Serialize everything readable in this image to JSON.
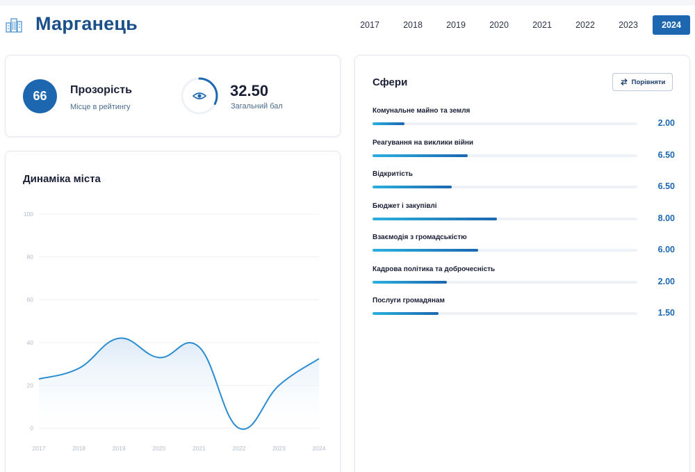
{
  "header": {
    "city": "Марганець",
    "icon": "city-buildings-icon",
    "years": [
      "2017",
      "2018",
      "2019",
      "2020",
      "2021",
      "2022",
      "2023",
      "2024"
    ],
    "active_year": "2024"
  },
  "rating": {
    "rank": "66",
    "title": "Прозорість",
    "subtitle": "Місце в рейтингу",
    "score": "32.50",
    "score_label": "Загальний бал",
    "score_fraction": 0.325,
    "icon": "eye-icon"
  },
  "dynamics": {
    "title": "Динаміка міста"
  },
  "spheres": {
    "title": "Сфери",
    "compare_label": "Порівняти",
    "compare_icon": "swap-arrows-icon",
    "items": [
      {
        "label": "Комунальне майно та земля",
        "value": "2.00",
        "fraction": 0.12
      },
      {
        "label": "Реагування на виклики війни",
        "value": "6.50",
        "fraction": 0.36
      },
      {
        "label": "Відкритість",
        "value": "6.50",
        "fraction": 0.3
      },
      {
        "label": "Бюджет і закупівлі",
        "value": "8.00",
        "fraction": 0.47
      },
      {
        "label": "Взаємодія з громадськістю",
        "value": "6.00",
        "fraction": 0.4
      },
      {
        "label": "Кадрова політика та доброчесність",
        "value": "2.00",
        "fraction": 0.28
      },
      {
        "label": "Послуги громадянам",
        "value": "1.50",
        "fraction": 0.25
      }
    ]
  },
  "chart_data": {
    "type": "area",
    "x": [
      "2017",
      "2018",
      "2019",
      "2020",
      "2021",
      "2022",
      "2023",
      "2024"
    ],
    "series": [
      {
        "values": [
          23,
          28,
          42,
          33,
          38,
          0,
          20,
          32.5
        ]
      }
    ],
    "yticks": [
      "0",
      "20",
      "40",
      "60",
      "80",
      "100"
    ],
    "ylim": [
      0,
      100
    ],
    "grid": true,
    "line_color": "#2a8cd0",
    "fill_color": "#dbe9f7"
  },
  "colors": {
    "primary": "#1c67b0",
    "title": "#1b4f8a",
    "bar_start": "#2ab0dd"
  }
}
